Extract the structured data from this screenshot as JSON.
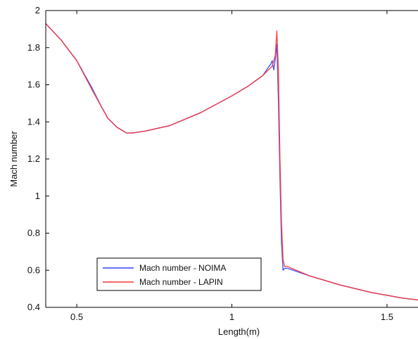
{
  "chart_data": {
    "type": "line",
    "title": "",
    "xlabel": "Length(m)",
    "ylabel": "Mach number",
    "xlim": [
      0.4,
      1.6
    ],
    "ylim": [
      0.4,
      2.0
    ],
    "xticks": [
      0.5,
      1.0,
      1.5
    ],
    "xtick_labels": [
      "0.5",
      "1",
      "1.5"
    ],
    "yticks": [
      0.4,
      0.6,
      0.8,
      1.0,
      1.2,
      1.4,
      1.6,
      1.8,
      2.0
    ],
    "ytick_labels": [
      "0.4",
      "0.6",
      "0.8",
      "1",
      "1.2",
      "1.4",
      "1.6",
      "1.8",
      "2"
    ],
    "grid": false,
    "legend_position": "bottom-left",
    "series": [
      {
        "name": "Mach number - NOIMA",
        "color": "#3344ff",
        "x": [
          0.4,
          0.45,
          0.5,
          0.55,
          0.58,
          0.6,
          0.63,
          0.66,
          0.68,
          0.72,
          0.8,
          0.9,
          1.0,
          1.05,
          1.1,
          1.12,
          1.125,
          1.13,
          1.135,
          1.14,
          1.145,
          1.15,
          1.155,
          1.16,
          1.165,
          1.17,
          1.18,
          1.25,
          1.35,
          1.45,
          1.55,
          1.6
        ],
        "y": [
          1.93,
          1.84,
          1.73,
          1.58,
          1.48,
          1.42,
          1.37,
          1.34,
          1.34,
          1.35,
          1.38,
          1.45,
          1.54,
          1.59,
          1.65,
          1.7,
          1.71,
          1.73,
          1.68,
          1.74,
          1.82,
          1.52,
          1.1,
          0.75,
          0.6,
          0.61,
          0.61,
          0.57,
          0.52,
          0.48,
          0.45,
          0.44
        ]
      },
      {
        "name": "Mach number - LAPIN",
        "color": "#ff3333",
        "x": [
          0.4,
          0.45,
          0.5,
          0.55,
          0.58,
          0.6,
          0.63,
          0.66,
          0.68,
          0.72,
          0.8,
          0.9,
          1.0,
          1.05,
          1.1,
          1.13,
          1.14,
          1.145,
          1.15,
          1.155,
          1.16,
          1.165,
          1.17,
          1.18,
          1.25,
          1.35,
          1.45,
          1.55,
          1.6
        ],
        "y": [
          1.93,
          1.84,
          1.73,
          1.57,
          1.48,
          1.42,
          1.37,
          1.34,
          1.34,
          1.35,
          1.38,
          1.45,
          1.54,
          1.59,
          1.65,
          1.7,
          1.76,
          1.89,
          1.68,
          1.2,
          0.85,
          0.66,
          0.62,
          0.62,
          0.57,
          0.52,
          0.48,
          0.45,
          0.44
        ]
      }
    ]
  }
}
